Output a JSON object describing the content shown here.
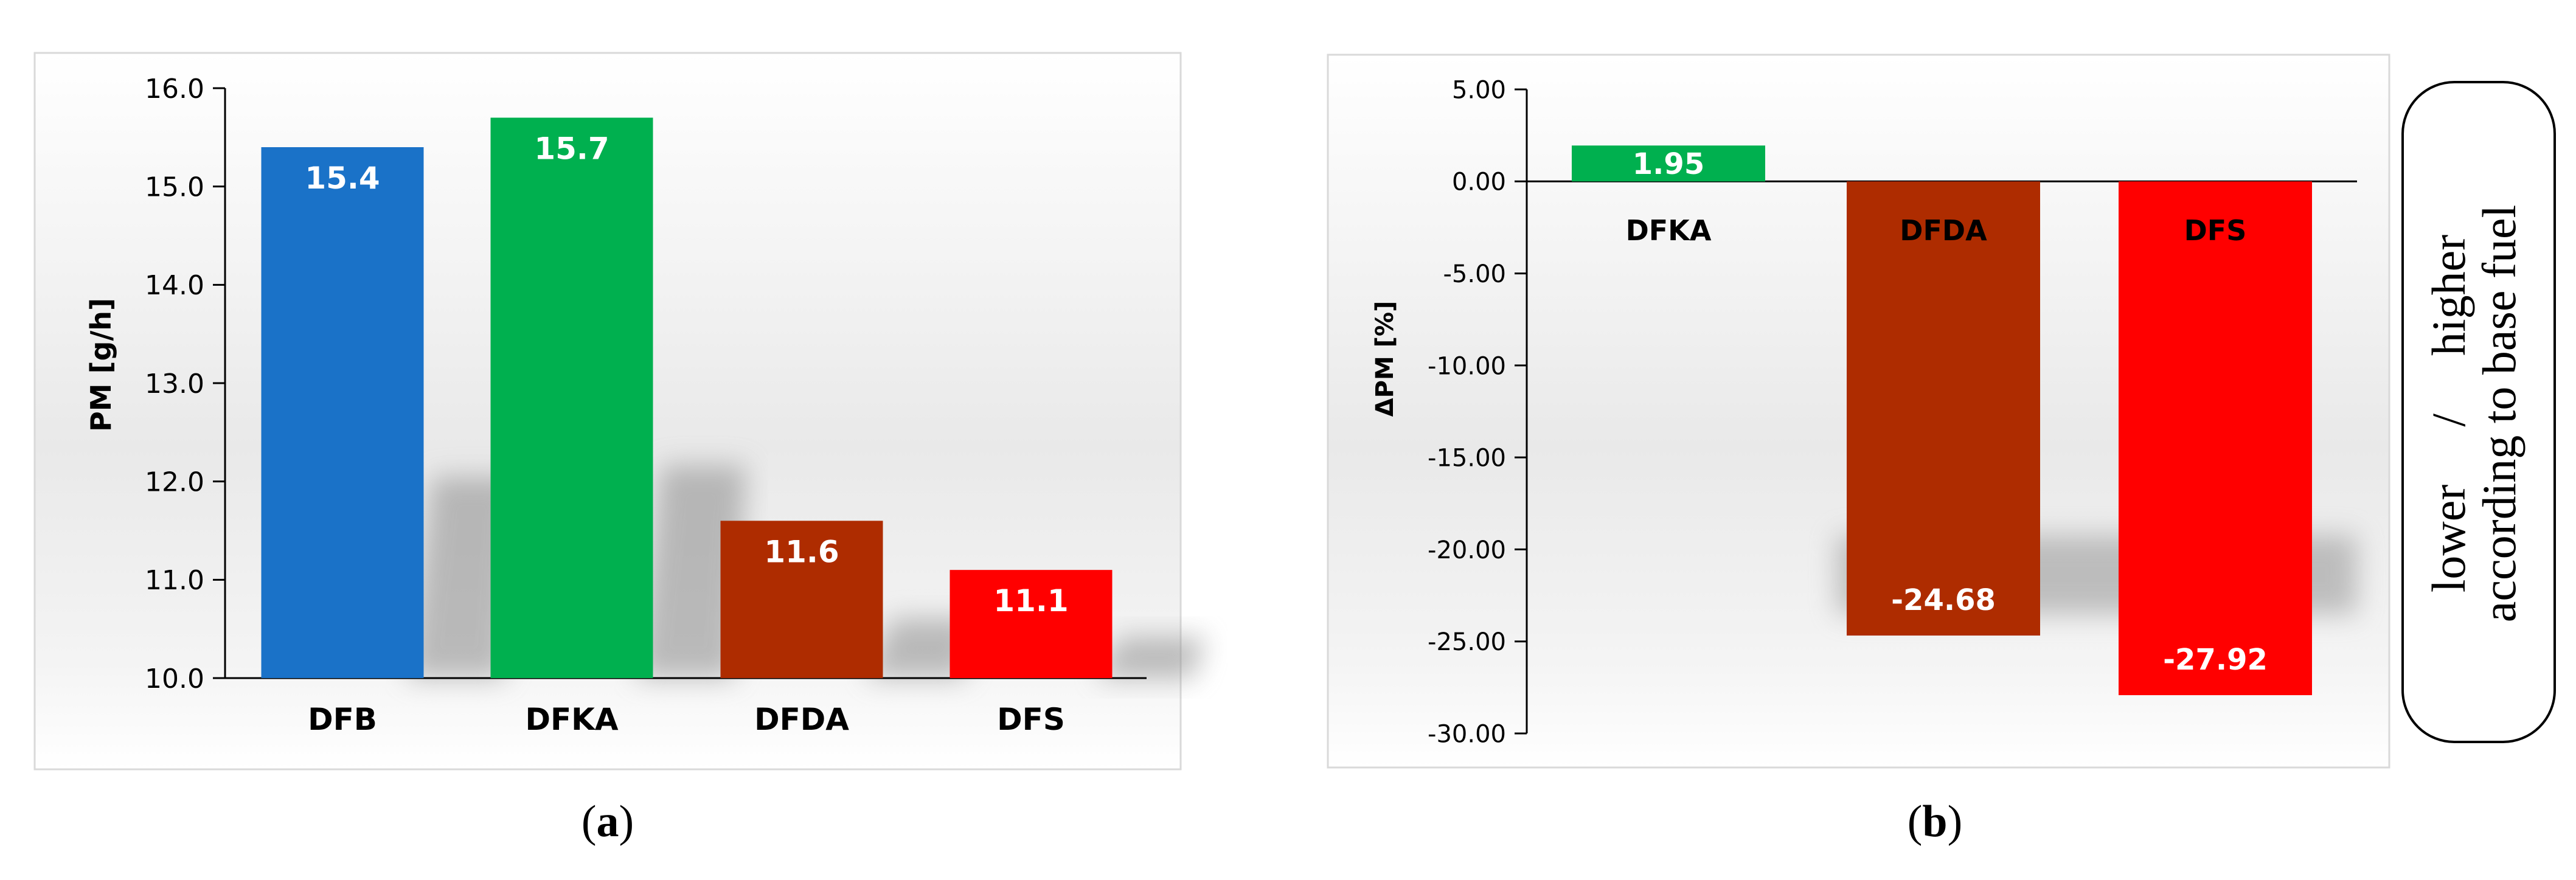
{
  "chart_data": [
    {
      "type": "bar",
      "panel_label": "a",
      "ylabel": "PM [g/h]",
      "categories": [
        "DFB",
        "DFKA",
        "DFDA",
        "DFS"
      ],
      "values": [
        15.4,
        15.7,
        11.6,
        11.1
      ],
      "value_labels": [
        "15.4",
        "15.7",
        "11.6",
        "11.1"
      ],
      "colors": [
        "#1a72c8",
        "#00b04f",
        "#ae2c00",
        "#ff0000"
      ],
      "ylim": [
        10.0,
        16.0
      ],
      "ticks": [
        "10.0",
        "11.0",
        "12.0",
        "13.0",
        "14.0",
        "15.0",
        "16.0"
      ],
      "grid": false
    },
    {
      "type": "bar",
      "panel_label": "b",
      "ylabel": "ΔPM [%]",
      "categories": [
        "DFKA",
        "DFDA",
        "DFS"
      ],
      "values": [
        1.95,
        -24.68,
        -27.92
      ],
      "value_labels": [
        "1.95",
        "-24.68",
        "-27.92"
      ],
      "colors": [
        "#00b04f",
        "#ae2c00",
        "#ff0000"
      ],
      "ylim": [
        -30.0,
        5.0
      ],
      "ticks": [
        "-30.00",
        "-25.00",
        "-20.00",
        "-15.00",
        "-10.00",
        "-5.00",
        "0.00",
        "5.00"
      ],
      "grid": false
    }
  ],
  "side_note": {
    "line1_left": "lower",
    "line1_sep": "/",
    "line1_right": "higher",
    "line2": "according to base fuel"
  },
  "captions": {
    "a": {
      "open": "(",
      "letter": "a",
      "close": ")"
    },
    "b": {
      "open": "(",
      "letter": "b",
      "close": ")"
    }
  }
}
